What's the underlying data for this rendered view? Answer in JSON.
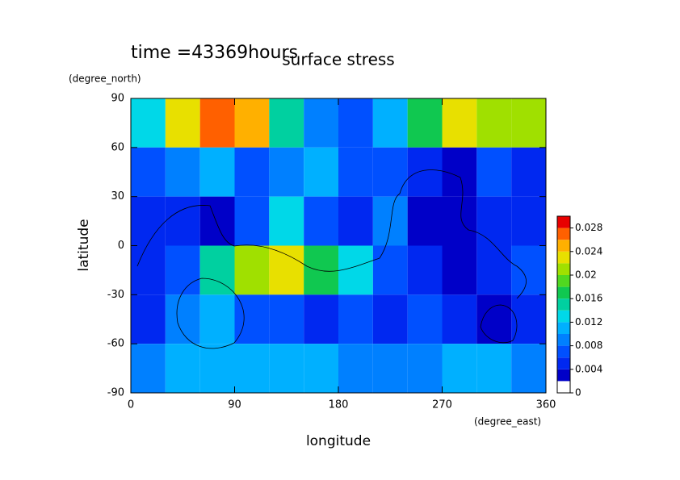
{
  "chart_data": {
    "type": "heatmap",
    "title": "surface stress",
    "subtitle": "time =43369hours",
    "x_label": "longitude",
    "x_unit": "(degree_east)",
    "y_label": "latitude",
    "y_unit": "(degree_north)",
    "xlim": [
      0,
      360
    ],
    "ylim": [
      -90,
      90
    ],
    "xticks": [
      0,
      90,
      180,
      270,
      360
    ],
    "yticks": [
      90,
      60,
      30,
      0,
      -30,
      -60,
      -90
    ],
    "xbins": [
      0,
      30,
      60,
      90,
      120,
      150,
      180,
      210,
      240,
      270,
      300,
      330,
      360
    ],
    "ybins": [
      90,
      60,
      30,
      0,
      -30,
      -60,
      -90
    ],
    "z": [
      [
        0.012,
        0.022,
        0.026,
        0.024,
        0.014,
        0.008,
        0.006,
        0.01,
        0.016,
        0.022,
        0.02,
        0.02
      ],
      [
        0.006,
        0.008,
        0.01,
        0.006,
        0.008,
        0.01,
        0.006,
        0.006,
        0.004,
        0.002,
        0.006,
        0.004
      ],
      [
        0.004,
        0.004,
        0.002,
        0.006,
        0.012,
        0.006,
        0.004,
        0.008,
        0.002,
        0.002,
        0.004,
        0.004
      ],
      [
        0.004,
        0.006,
        0.014,
        0.02,
        0.022,
        0.016,
        0.012,
        0.006,
        0.004,
        0.002,
        0.004,
        0.006
      ],
      [
        0.004,
        0.008,
        0.01,
        0.006,
        0.006,
        0.004,
        0.006,
        0.004,
        0.006,
        0.004,
        0.002,
        0.004
      ],
      [
        0.008,
        0.01,
        0.01,
        0.01,
        0.01,
        0.01,
        0.008,
        0.008,
        0.008,
        0.01,
        0.01,
        0.008
      ]
    ],
    "levels": [
      0,
      0.002,
      0.004,
      0.006,
      0.008,
      0.01,
      0.012,
      0.014,
      0.016,
      0.018,
      0.02,
      0.022,
      0.024,
      0.026,
      0.028,
      0.03
    ],
    "colors": [
      "#ffffff",
      "#0000c8",
      "#0028f0",
      "#0050ff",
      "#0080ff",
      "#00b0ff",
      "#00d8e8",
      "#00d0a0",
      "#10c850",
      "#50d820",
      "#a0e000",
      "#e8e000",
      "#ffb000",
      "#ff6000",
      "#e80000"
    ],
    "colorbar_ticks": [
      0,
      0.004,
      0.008,
      0.012,
      0.016,
      0.02,
      0.024,
      0.028
    ]
  }
}
